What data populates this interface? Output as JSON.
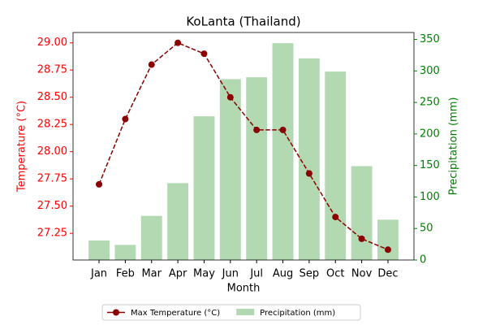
{
  "chart_data": {
    "type": "combo",
    "title": "KoLanta (Thailand)",
    "x_label": "Month",
    "y_label": "Temperature (°C)",
    "y2_label": "Precipitation (mm)",
    "categories": [
      "Jan",
      "Feb",
      "Mar",
      "Apr",
      "May",
      "Jun",
      "Jul",
      "Aug",
      "Sep",
      "Oct",
      "Nov",
      "Dec"
    ],
    "series": [
      {
        "name": "Max Temperature (°C)",
        "type": "line",
        "color": "#8b0000",
        "axis": "y",
        "values": [
          27.7,
          28.3,
          28.8,
          29.0,
          28.9,
          28.5,
          28.2,
          28.2,
          27.8,
          27.4,
          27.2,
          27.1
        ]
      },
      {
        "name": "Precipitation (mm)",
        "type": "bar",
        "color": "#b2d9b2",
        "axis": "y2",
        "values": [
          31,
          24,
          70,
          122,
          228,
          287,
          290,
          344,
          320,
          299,
          149,
          64
        ]
      }
    ],
    "ylim": [
      27.005,
      29.095
    ],
    "yticks": [
      {
        "value": 27.25,
        "label": "27.25"
      },
      {
        "value": 27.5,
        "label": "27.50"
      },
      {
        "value": 27.75,
        "label": "27.75"
      },
      {
        "value": 28,
        "label": "28.00"
      },
      {
        "value": 28.25,
        "label": "28.25"
      },
      {
        "value": 28.5,
        "label": "28.50"
      },
      {
        "value": 28.75,
        "label": "28.75"
      },
      {
        "value": 29,
        "label": "29.00"
      }
    ],
    "y2lim": [
      0,
      361
    ],
    "y2ticks": [
      0,
      50,
      100,
      150,
      200,
      250,
      300,
      350
    ],
    "y_color": "#ff0000",
    "y2_color": "#008000",
    "legend": "bottom"
  }
}
